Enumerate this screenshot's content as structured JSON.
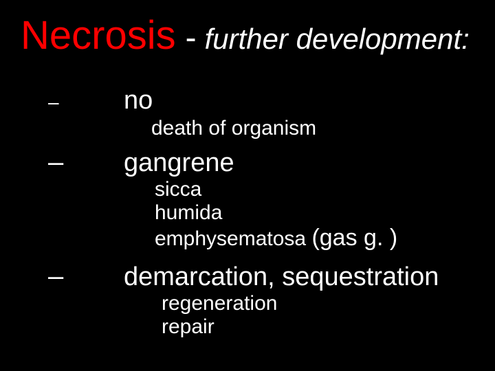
{
  "title": {
    "main": "Necrosis",
    "dash": "-",
    "sub": "further development:"
  },
  "items": [
    {
      "dash": "–",
      "label": "no",
      "subs": [
        "death of organism"
      ]
    },
    {
      "dash": "–",
      "label": "gangrene",
      "subs": [
        "sicca",
        "humida"
      ],
      "sub_composite": {
        "a": "emphysematosa ",
        "b": "(gas g. )"
      }
    },
    {
      "dash": "–",
      "label": "demarcation, sequestration",
      "subs": [
        "regeneration",
        "repair"
      ]
    }
  ],
  "colors": {
    "background": "#000000",
    "title_main": "#ff0000",
    "text": "#ffffff"
  }
}
